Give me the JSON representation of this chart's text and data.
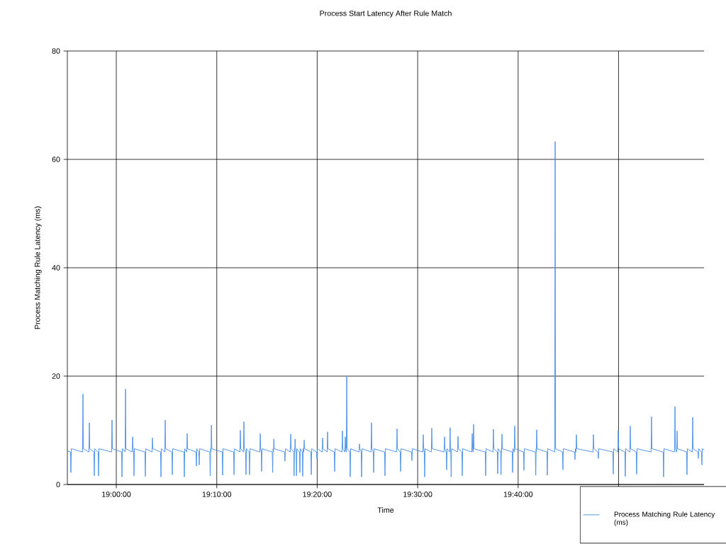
{
  "chart_data": {
    "type": "line",
    "title": "Process Start Latency After Rule Match",
    "xlabel": "Time",
    "ylabel": "Process Matching Rule Latency (ms)",
    "xlim": [
      18.9188,
      19.9751
    ],
    "ylim": [
      0,
      80
    ],
    "xticks": [
      {
        "value": 19,
        "label": "19:00:00"
      },
      {
        "value": 19.1667,
        "label": "19:10:00"
      },
      {
        "value": 19.3333,
        "label": "19:20:00"
      },
      {
        "value": 19.5,
        "label": "19:30:00"
      },
      {
        "value": 19.6667,
        "label": "19:40:00"
      },
      {
        "value": 19.8333,
        "label": null
      }
    ],
    "yticks": [
      0,
      20,
      40,
      60,
      80
    ],
    "grid": true,
    "legend": "bottom right",
    "series": [
      {
        "name": "Process Matching Rule Latency (ms)",
        "color": "#4a8fe7",
        "x": [
          18.9188,
          18.924,
          18.9247,
          18.9254,
          18.944,
          18.9447,
          18.9454,
          18.9546,
          18.9553,
          18.956,
          18.9628,
          18.9635,
          18.9642,
          18.9699,
          18.9706,
          18.9713,
          18.9922,
          18.9929,
          18.9936,
          19.0087,
          19.0094,
          19.0101,
          19.0146,
          19.0153,
          19.016,
          19.0264,
          19.0271,
          19.0278,
          19.0287,
          19.0294,
          19.0301,
          19.0475,
          19.0482,
          19.0489,
          19.0593,
          19.06,
          19.0607,
          19.0734,
          19.0741,
          19.0748,
          19.0805,
          19.0812,
          19.0819,
          19.0922,
          19.0929,
          19.0936,
          19.1122,
          19.1129,
          19.1136,
          19.1169,
          19.1176,
          19.1183,
          19.1322,
          19.1329,
          19.1336,
          19.1369,
          19.1376,
          19.1383,
          19.1551,
          19.1558,
          19.1565,
          19.1571,
          19.1578,
          19.1585,
          19.1757,
          19.1764,
          19.1771,
          19.1946,
          19.1953,
          19.196,
          19.2051,
          19.2058,
          19.2065,
          19.211,
          19.2117,
          19.2124,
          19.2145,
          19.2152,
          19.2159,
          19.2204,
          19.2211,
          19.2218,
          19.2381,
          19.2388,
          19.2395,
          19.2404,
          19.2411,
          19.2418,
          19.2587,
          19.2594,
          19.2601,
          19.2607,
          19.2614,
          19.2621,
          19.2792,
          19.2799,
          19.2806,
          19.2887,
          19.2894,
          19.2901,
          19.2943,
          19.295,
          19.2957,
          19.2959,
          19.2966,
          19.2973,
          19.2983,
          19.299,
          19.2997,
          19.3039,
          19.3046,
          19.3053,
          19.3086,
          19.3093,
          19.31,
          19.311,
          19.3117,
          19.3124,
          19.3228,
          19.3235,
          19.3242,
          19.3322,
          19.3329,
          19.3336,
          19.3416,
          19.3423,
          19.343,
          19.3498,
          19.3505,
          19.3512,
          19.3616,
          19.3623,
          19.363,
          19.3745,
          19.3752,
          19.3759,
          19.3792,
          19.3799,
          19.3806,
          19.3816,
          19.3823,
          19.383,
          19.3874,
          19.3881,
          19.3888,
          19.4027,
          19.4034,
          19.4041,
          19.4063,
          19.407,
          19.4077,
          19.4227,
          19.4234,
          19.4241,
          19.4263,
          19.427,
          19.4277,
          19.4451,
          19.4458,
          19.4465,
          19.4651,
          19.4658,
          19.4665,
          19.471,
          19.4717,
          19.4724,
          19.4898,
          19.4905,
          19.4912,
          19.5086,
          19.5093,
          19.51,
          19.5109,
          19.5116,
          19.5123,
          19.5227,
          19.5234,
          19.5241,
          19.5439,
          19.5446,
          19.5453,
          19.5474,
          19.5481,
          19.5488,
          19.5531,
          19.5538,
          19.5545,
          19.5549,
          19.5556,
          19.5563,
          19.5662,
          19.5669,
          19.5676,
          19.5733,
          19.574,
          19.5747,
          19.5898,
          19.5905,
          19.5912,
          19.5921,
          19.5928,
          19.5935,
          19.6121,
          19.6128,
          19.6135,
          19.625,
          19.6257,
          19.6264,
          19.6321,
          19.6328,
          19.6335,
          19.6376,
          19.6383,
          19.639,
          19.6392,
          19.6399,
          19.6406,
          19.6568,
          19.6575,
          19.6582,
          19.6603,
          19.661,
          19.6617,
          19.6756,
          19.6763,
          19.677,
          19.6952,
          19.6959,
          19.6966,
          19.6968,
          19.6975,
          19.6982,
          19.7144,
          19.7151,
          19.7158,
          19.7274,
          19.7281,
          19.7288,
          19.7403,
          19.741,
          19.7417,
          19.7603,
          19.761,
          19.7617,
          19.7627,
          19.7634,
          19.7641,
          19.7909,
          19.7916,
          19.7923,
          19.7991,
          19.7998,
          19.8005,
          19.8238,
          19.8245,
          19.8252,
          19.8321,
          19.8328,
          19.8335,
          19.8438,
          19.8445,
          19.8452,
          19.852,
          19.8527,
          19.8534,
          19.8626,
          19.8633,
          19.864,
          19.8873,
          19.888,
          19.8887,
          19.9073,
          19.908,
          19.9087,
          19.9262,
          19.9269,
          19.9276,
          19.9297,
          19.9304,
          19.9311,
          19.9461,
          19.9468,
          19.9475,
          19.9556,
          19.9563,
          19.957,
          19.965,
          19.9657,
          19.9664,
          19.9708,
          19.9715,
          19.9722,
          19.9751
        ],
        "values": [
          6.2,
          6.0,
          2.2,
          6.6,
          6.0,
          16.7,
          6.6,
          6.0,
          11.4,
          6.6,
          6.0,
          1.6,
          6.6,
          6.0,
          1.6,
          6.6,
          6.0,
          11.9,
          6.6,
          6.0,
          1.4,
          6.6,
          6.0,
          17.6,
          6.6,
          6.0,
          8.8,
          6.6,
          6.0,
          1.6,
          6.6,
          6.0,
          1.5,
          6.6,
          6.0,
          8.6,
          6.6,
          6.0,
          1.4,
          6.6,
          6.0,
          11.9,
          6.6,
          6.0,
          1.8,
          6.6,
          6.0,
          1.4,
          6.6,
          6.0,
          9.4,
          6.6,
          6.0,
          3.4,
          6.6,
          6.0,
          3.6,
          6.6,
          6.0,
          1.6,
          6.6,
          6.0,
          11.0,
          6.6,
          6.0,
          1.7,
          6.6,
          6.0,
          1.8,
          6.6,
          6.0,
          10.0,
          6.6,
          6.0,
          11.6,
          6.6,
          6.0,
          1.8,
          6.6,
          6.0,
          1.8,
          6.6,
          6.0,
          9.4,
          6.6,
          6.0,
          2.4,
          6.6,
          6.0,
          2.2,
          6.6,
          6.0,
          8.4,
          6.6,
          6.0,
          4.3,
          6.6,
          6.0,
          9.3,
          6.6,
          6.0,
          1.6,
          6.6,
          6.0,
          8.4,
          6.6,
          6.0,
          1.6,
          6.6,
          6.0,
          2.2,
          6.6,
          6.0,
          1.5,
          6.6,
          6.0,
          8.2,
          6.6,
          6.0,
          1.8,
          6.6,
          6.0,
          4.8,
          6.6,
          6.0,
          8.6,
          6.6,
          6.0,
          9.7,
          6.6,
          6.0,
          2.4,
          6.6,
          6.0,
          9.9,
          6.6,
          6.0,
          8.8,
          6.6,
          6.0,
          19.9,
          6.6,
          6.0,
          1.4,
          6.6,
          6.0,
          7.5,
          6.6,
          6.0,
          1.4,
          6.6,
          6.0,
          11.4,
          6.6,
          6.0,
          2.2,
          6.6,
          6.0,
          1.6,
          6.6,
          6.0,
          10.3,
          6.6,
          6.0,
          2.4,
          6.6,
          6.0,
          4.4,
          6.6,
          6.0,
          9.2,
          6.6,
          6.0,
          1.4,
          6.6,
          6.0,
          10.4,
          6.6,
          6.0,
          8.8,
          6.6,
          6.0,
          2.7,
          6.6,
          6.0,
          10.5,
          6.6,
          6.0,
          1.4,
          6.6,
          6.0,
          8.9,
          6.6,
          6.0,
          1.6,
          6.6,
          6.0,
          9.4,
          6.6,
          6.0,
          11.1,
          6.6,
          6.0,
          1.6,
          6.6,
          6.0,
          10.2,
          6.6,
          6.0,
          2.0,
          6.6,
          6.0,
          1.8,
          6.6,
          6.0,
          9.3,
          6.6,
          6.0,
          2.2,
          6.6,
          6.0,
          10.8,
          6.6,
          6.0,
          2.6,
          6.6,
          6.0,
          1.7,
          6.6,
          6.0,
          10.1,
          6.6,
          6.0,
          1.7,
          6.6,
          6.0,
          63.3,
          6.6,
          6.0,
          2.7,
          6.6,
          6.0,
          4.6,
          6.6,
          6.0,
          9.2,
          6.6,
          6.0,
          9.2,
          6.6,
          6.0,
          4.8,
          6.6,
          6.0,
          1.9,
          6.6,
          6.0,
          9.9,
          6.6,
          6.0,
          1.5,
          6.6,
          6.0,
          10.8,
          6.6,
          6.0,
          1.9,
          6.6,
          6.0,
          12.5,
          6.6,
          6.0,
          1.4,
          6.6,
          6.0,
          14.4,
          6.6,
          6.0,
          9.9,
          6.6,
          6.0,
          1.8,
          6.6,
          6.0,
          12.4,
          6.6,
          6.0,
          4.8,
          6.6,
          6.0,
          3.6,
          6.6,
          6.4
        ]
      }
    ]
  }
}
